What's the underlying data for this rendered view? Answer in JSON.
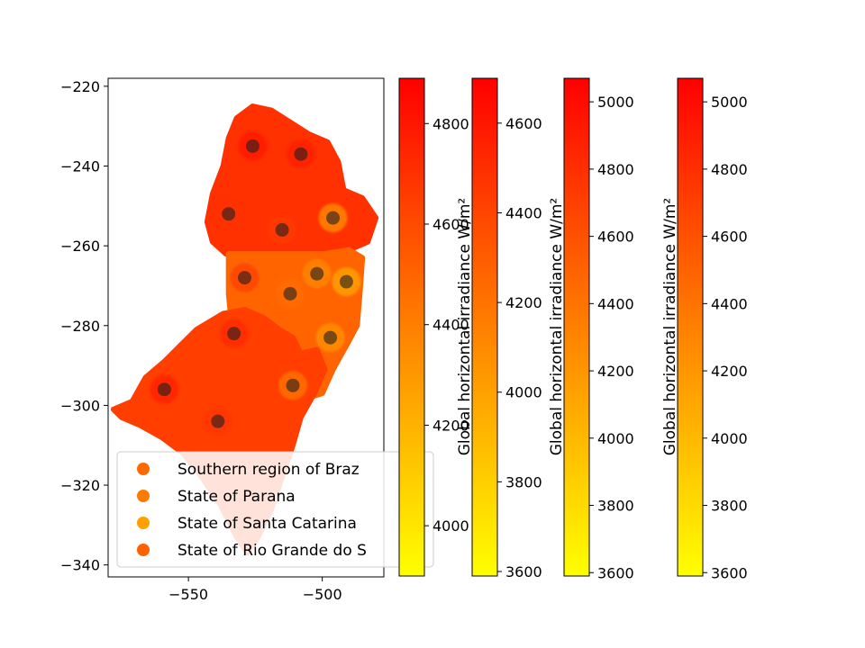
{
  "chart_data": {
    "type": "scatter",
    "title": "",
    "xlabel": "",
    "ylabel": "",
    "xlim": [
      -580,
      -477
    ],
    "ylim": [
      -343,
      -218
    ],
    "x_ticks": [
      -550,
      -500
    ],
    "y_ticks": [
      -220,
      -240,
      -260,
      -280,
      -300,
      -320,
      -340
    ],
    "x_tick_labels": [
      "−550",
      "−500"
    ],
    "y_tick_labels": [
      "−220",
      "−240",
      "−260",
      "−280",
      "−300",
      "−320",
      "−340"
    ],
    "grid": false,
    "legend_placement": "lower-left",
    "series": [
      {
        "name": "Southern region of Brazil",
        "legend_text": "Southern region of Braz",
        "color": "#ff6a00"
      },
      {
        "name": "State of Parana",
        "legend_text": "State of Parana",
        "color": "#ff7a00"
      },
      {
        "name": "State of Santa Catarina",
        "legend_text": "State of Santa Catarina",
        "color": "#ffa000"
      },
      {
        "name": "State of Rio Grande do Sul",
        "legend_text": "State of Rio Grande do S",
        "color": "#ff6000"
      }
    ],
    "regions": [
      {
        "name": "State of Parana",
        "irradiance": 4700,
        "outline": [
          [
            -526,
            -225
          ],
          [
            -519,
            -226
          ],
          [
            -512,
            -229
          ],
          [
            -505,
            -232
          ],
          [
            -498,
            -234
          ],
          [
            -494,
            -239
          ],
          [
            -492,
            -246
          ],
          [
            -485,
            -248
          ],
          [
            -480,
            -253
          ],
          [
            -483,
            -259
          ],
          [
            -490,
            -261
          ],
          [
            -500,
            -262
          ],
          [
            -512,
            -262
          ],
          [
            -524,
            -262
          ],
          [
            -530,
            -262
          ],
          [
            -536,
            -262
          ],
          [
            -541,
            -259
          ],
          [
            -543,
            -254
          ],
          [
            -541,
            -247
          ],
          [
            -537,
            -240
          ],
          [
            -535,
            -233
          ],
          [
            -532,
            -228
          ]
        ]
      },
      {
        "name": "State of Santa Catarina",
        "irradiance": 4500,
        "outline": [
          [
            -535,
            -262
          ],
          [
            -522,
            -262
          ],
          [
            -510,
            -262
          ],
          [
            -499,
            -262
          ],
          [
            -490,
            -261
          ],
          [
            -485,
            -263
          ],
          [
            -486,
            -272
          ],
          [
            -487,
            -280
          ],
          [
            -491,
            -285
          ],
          [
            -496,
            -291
          ],
          [
            -500,
            -297
          ],
          [
            -505,
            -298
          ],
          [
            -512,
            -289
          ],
          [
            -520,
            -284
          ],
          [
            -528,
            -283
          ],
          [
            -534,
            -279
          ],
          [
            -535,
            -272
          ]
        ]
      },
      {
        "name": "State of Rio Grande do Sul",
        "irradiance": 4650,
        "outline": [
          [
            -537,
            -277
          ],
          [
            -529,
            -276
          ],
          [
            -522,
            -278
          ],
          [
            -516,
            -281
          ],
          [
            -511,
            -283
          ],
          [
            -508,
            -287
          ],
          [
            -502,
            -286
          ],
          [
            -499,
            -291
          ],
          [
            -503,
            -297
          ],
          [
            -508,
            -303
          ],
          [
            -511,
            -310
          ],
          [
            -515,
            -318
          ],
          [
            -519,
            -326
          ],
          [
            -524,
            -333
          ],
          [
            -528,
            -337
          ],
          [
            -532,
            -333
          ],
          [
            -538,
            -325
          ],
          [
            -545,
            -318
          ],
          [
            -552,
            -312
          ],
          [
            -560,
            -308
          ],
          [
            -568,
            -305
          ],
          [
            -575,
            -303
          ],
          [
            -578,
            -301
          ],
          [
            -571,
            -299
          ],
          [
            -566,
            -293
          ],
          [
            -559,
            -289
          ],
          [
            -553,
            -285
          ],
          [
            -547,
            -281
          ]
        ]
      }
    ],
    "sample_points": [
      {
        "x": -526,
        "y": -235,
        "v": 4850
      },
      {
        "x": -508,
        "y": -237,
        "v": 4800
      },
      {
        "x": -535,
        "y": -252,
        "v": 4700
      },
      {
        "x": -515,
        "y": -256,
        "v": 4650
      },
      {
        "x": -496,
        "y": -253,
        "v": 4200
      },
      {
        "x": -529,
        "y": -268,
        "v": 4700
      },
      {
        "x": -502,
        "y": -267,
        "v": 4300
      },
      {
        "x": -491,
        "y": -269,
        "v": 4150
      },
      {
        "x": -512,
        "y": -272,
        "v": 4450
      },
      {
        "x": -533,
        "y": -282,
        "v": 4750
      },
      {
        "x": -497,
        "y": -283,
        "v": 4250
      },
      {
        "x": -559,
        "y": -296,
        "v": 4800
      },
      {
        "x": -511,
        "y": -295,
        "v": 4350
      },
      {
        "x": -539,
        "y": -304,
        "v": 4700
      }
    ],
    "colorbars": [
      {
        "range": [
          3900,
          4890
        ],
        "ticks": [
          4000,
          4200,
          4400,
          4600,
          4800
        ],
        "label": ""
      },
      {
        "range": [
          3590,
          4700
        ],
        "ticks": [
          3600,
          3800,
          4000,
          4200,
          4400,
          4600
        ],
        "label": "Global horizontal irradiance W/m²"
      },
      {
        "range": [
          3590,
          5070
        ],
        "ticks": [
          3600,
          3800,
          4000,
          4200,
          4400,
          4600,
          4800,
          5000
        ],
        "label": "Global horizontal irradiance W/m²"
      },
      {
        "range": [
          3590,
          5070
        ],
        "ticks": [
          3600,
          3800,
          4000,
          4200,
          4400,
          4600,
          4800,
          5000
        ],
        "label": "Global horizontal irradiance W/m²"
      }
    ],
    "colormap": {
      "low": "#ffff00",
      "high": "#ff0000"
    }
  }
}
